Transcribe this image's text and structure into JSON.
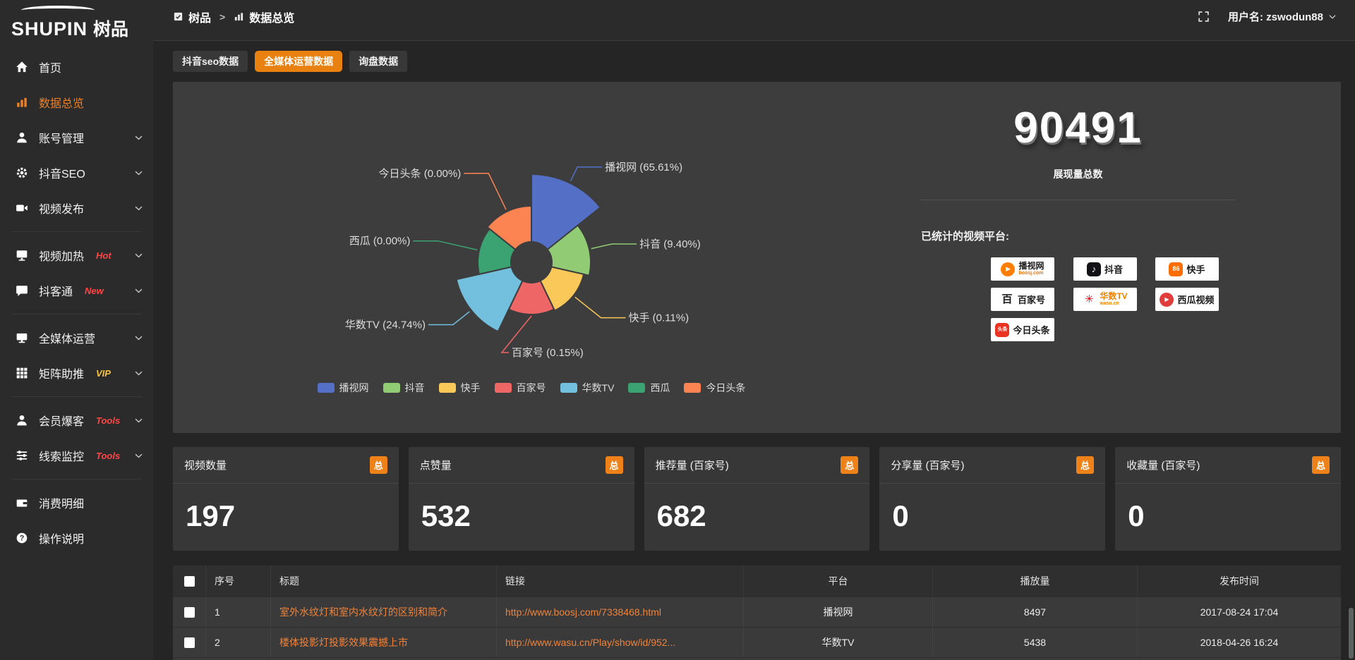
{
  "brand": {
    "logo_text": "SHUPIN",
    "logo_cn": "树品"
  },
  "topbar": {
    "breadcrumb": [
      {
        "label": "树品",
        "icon": "app-icon"
      },
      {
        "label": "数据总览",
        "icon": "chart-icon"
      }
    ],
    "separator": ">",
    "username": "用户名: zswodun88"
  },
  "sidebar": {
    "items": [
      {
        "label": "首页",
        "icon": "home-icon",
        "chevron": false,
        "active": false,
        "badge": null,
        "divider_after": false
      },
      {
        "label": "数据总览",
        "icon": "chart-icon",
        "chevron": false,
        "active": true,
        "badge": null,
        "divider_after": false
      },
      {
        "label": "账号管理",
        "icon": "user-icon",
        "chevron": true,
        "active": false,
        "badge": null,
        "divider_after": false
      },
      {
        "label": "抖音SEO",
        "icon": "gear-icon",
        "chevron": true,
        "active": false,
        "badge": null,
        "divider_after": false
      },
      {
        "label": "视频发布",
        "icon": "video-icon",
        "chevron": true,
        "active": false,
        "badge": null,
        "divider_after": true
      },
      {
        "label": "视频加热",
        "icon": "monitor-play-icon",
        "chevron": true,
        "active": false,
        "badge": "Hot",
        "badge_color": "#ff4545",
        "divider_after": false
      },
      {
        "label": "抖客通",
        "icon": "chat-icon",
        "chevron": true,
        "active": false,
        "badge": "New",
        "badge_color": "#ff4545",
        "divider_after": true
      },
      {
        "label": "全媒体运营",
        "icon": "display-icon",
        "chevron": true,
        "active": false,
        "badge": null,
        "divider_after": false
      },
      {
        "label": "矩阵助推",
        "icon": "grid-icon",
        "chevron": true,
        "active": false,
        "badge": "VIP",
        "badge_color": "#f6c343",
        "divider_after": true
      },
      {
        "label": "会员爆客",
        "icon": "member-icon",
        "chevron": true,
        "active": false,
        "badge": "Tools",
        "badge_color": "#ff4545",
        "divider_after": false
      },
      {
        "label": "线索监控",
        "icon": "filter-icon",
        "chevron": true,
        "active": false,
        "badge": "Tools",
        "badge_color": "#ff4545",
        "divider_after": true
      },
      {
        "label": "消费明细",
        "icon": "wallet-icon",
        "chevron": false,
        "active": false,
        "badge": null,
        "divider_after": false
      },
      {
        "label": "操作说明",
        "icon": "help-icon",
        "chevron": false,
        "active": false,
        "badge": null,
        "divider_after": false
      }
    ],
    "accent_color": "#ee8125"
  },
  "tabs": [
    {
      "label": "抖音seo数据",
      "active": false
    },
    {
      "label": "全媒体运营数据",
      "active": true
    },
    {
      "label": "询盘数据",
      "active": false
    }
  ],
  "tab_active_color": "#e8810f",
  "chart_data": {
    "type": "pie",
    "style": "nightingale-rose",
    "categories": [
      "播视网",
      "抖音",
      "快手",
      "百家号",
      "华数TV",
      "西瓜",
      "今日头条"
    ],
    "values_percent": [
      65.61,
      9.4,
      0.11,
      0.15,
      24.74,
      0.0,
      0.0
    ],
    "colors": [
      "#5470c6",
      "#91cc75",
      "#fac858",
      "#ee6666",
      "#73c0de",
      "#3ba272",
      "#fc8452"
    ],
    "label_format": "{name} ({value}%)",
    "legend": {
      "position": "bottom",
      "items": [
        "播视网",
        "抖音",
        "快手",
        "百家号",
        "华数TV",
        "西瓜",
        "今日头条"
      ]
    },
    "layout_hints": {
      "start_angle_deg": 0,
      "clockwise": true,
      "equal_angle_slices": true,
      "outer_radius_px": [
        125,
        84,
        76,
        74,
        109,
        76,
        80
      ],
      "inner_radius_px": 29
    }
  },
  "overview": {
    "total": "90491",
    "total_label": "展现量总数",
    "platforms_label": "已统计的视频平台:",
    "platforms": [
      {
        "name": "播视网",
        "sub": "boosj.com",
        "icon": "boosj-logo"
      },
      {
        "name": "抖音",
        "sub": null,
        "icon": "douyin-logo"
      },
      {
        "name": "快手",
        "sub": null,
        "icon": "kuaishou-logo"
      },
      {
        "name": "百家号",
        "sub": null,
        "icon": "baijiahao-logo"
      },
      {
        "name": "华数TV",
        "sub": "wasu.cn",
        "icon": "wasu-logo"
      },
      {
        "name": "西瓜视频",
        "sub": null,
        "icon": "xigua-logo"
      },
      {
        "name": "今日头条",
        "sub": null,
        "icon": "toutiao-logo"
      }
    ]
  },
  "stats": [
    {
      "label": "视频数量",
      "badge": "总",
      "value": "197"
    },
    {
      "label": "点赞量",
      "badge": "总",
      "value": "532"
    },
    {
      "label": "推荐量 (百家号)",
      "badge": "总",
      "value": "682"
    },
    {
      "label": "分享量 (百家号)",
      "badge": "总",
      "value": "0"
    },
    {
      "label": "收藏量 (百家号)",
      "badge": "总",
      "value": "0"
    }
  ],
  "stat_badge_color": "#ef8119",
  "link_color": "#f0833a",
  "table": {
    "headers": [
      "序号",
      "标题",
      "链接",
      "平台",
      "播放量",
      "发布时间"
    ],
    "rows": [
      {
        "seq": "1",
        "title": "室外水纹灯和室内水纹灯的区别和简介",
        "link": "http://www.boosj.com/7338468.html",
        "platform": "播视网",
        "plays": "8497",
        "time": "2017-08-24 17:04"
      },
      {
        "seq": "2",
        "title": "楼体投影灯投影效果震撼上市",
        "link": "http://www.wasu.cn/Play/show/id/952...",
        "platform": "华数TV",
        "plays": "5438",
        "time": "2018-04-26 16:24"
      }
    ]
  }
}
